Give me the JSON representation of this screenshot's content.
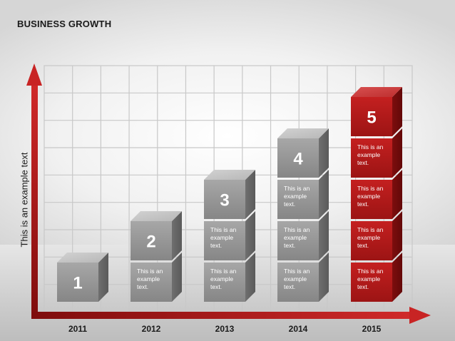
{
  "title": "BUSINESS GROWTH",
  "chart_data": {
    "type": "bar",
    "title": "BUSINESS GROWTH",
    "xlabel": "",
    "ylabel": "This is an example text",
    "categories": [
      "2011",
      "2012",
      "2013",
      "2014",
      "2015"
    ],
    "values": [
      1,
      2,
      3,
      4,
      5
    ],
    "cube_label": "This is an example text.",
    "ylim": [
      0,
      6
    ],
    "grid": true,
    "colors": {
      "bar": "#8e8e8e",
      "highlight": "#b01c1c",
      "axis": "#b41e1e",
      "grid": "#c8c8c8"
    },
    "highlight_category": "2015"
  }
}
